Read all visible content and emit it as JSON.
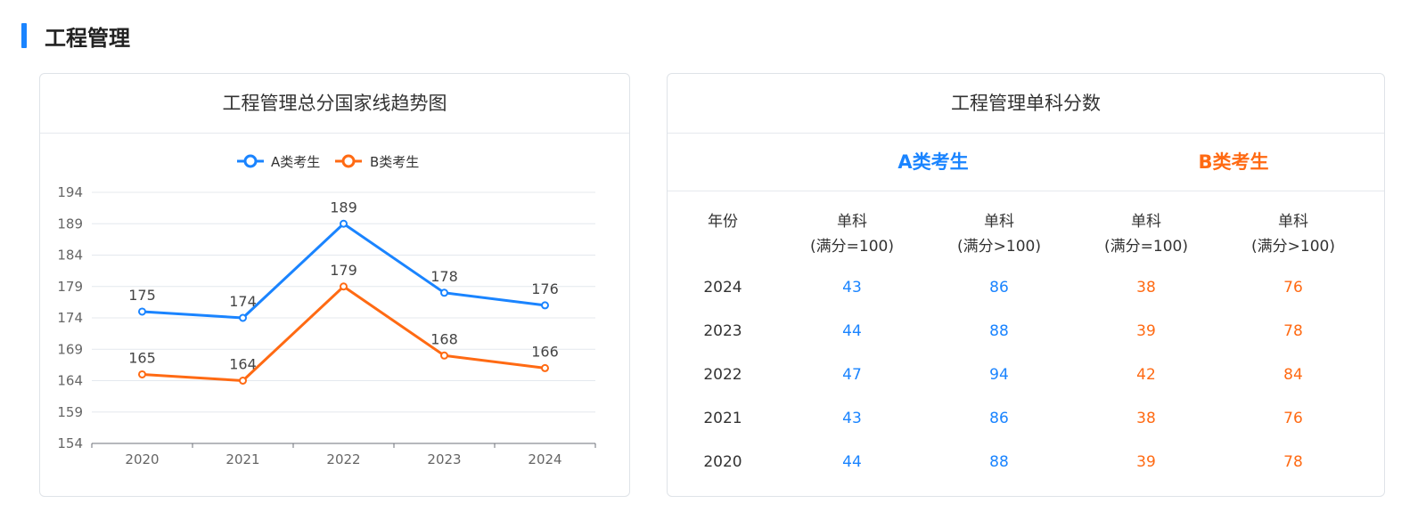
{
  "section": {
    "title": "工程管理"
  },
  "chart_card": {
    "title": "工程管理总分国家线趋势图"
  },
  "table_card": {
    "title": "工程管理单科分数",
    "group_a": "A类考生",
    "group_b": "B类考生",
    "headers": [
      {
        "line1": "年份",
        "line2": ""
      },
      {
        "line1": "单科",
        "line2": "(满分=100)"
      },
      {
        "line1": "单科",
        "line2": "(满分>100)"
      },
      {
        "line1": "单科",
        "line2": "(满分=100)"
      },
      {
        "line1": "单科",
        "line2": "(满分>100)"
      }
    ],
    "rows": [
      {
        "year": "2024",
        "a100": "43",
        "a_over": "86",
        "b100": "38",
        "b_over": "76"
      },
      {
        "year": "2023",
        "a100": "44",
        "a_over": "88",
        "b100": "39",
        "b_over": "78"
      },
      {
        "year": "2022",
        "a100": "47",
        "a_over": "94",
        "b100": "42",
        "b_over": "84"
      },
      {
        "year": "2021",
        "a100": "43",
        "a_over": "86",
        "b100": "38",
        "b_over": "76"
      },
      {
        "year": "2020",
        "a100": "44",
        "a_over": "88",
        "b100": "39",
        "b_over": "78"
      }
    ]
  },
  "colors": {
    "accent_a": "#1a84ff",
    "accent_b": "#ff6a13"
  },
  "chart_data": {
    "type": "line",
    "title": "工程管理总分国家线趋势图",
    "categories": [
      "2020",
      "2021",
      "2022",
      "2023",
      "2024"
    ],
    "series": [
      {
        "name": "A类考生",
        "values": [
          175,
          174,
          189,
          178,
          176
        ],
        "color": "#1a84ff"
      },
      {
        "name": "B类考生",
        "values": [
          165,
          164,
          179,
          168,
          166
        ],
        "color": "#ff6a13"
      }
    ],
    "yticks": [
      154,
      159,
      164,
      169,
      174,
      179,
      184,
      189,
      194
    ],
    "ylim": [
      154,
      194
    ],
    "grid": true,
    "legend": "top-center",
    "xlabel": "",
    "ylabel": ""
  }
}
